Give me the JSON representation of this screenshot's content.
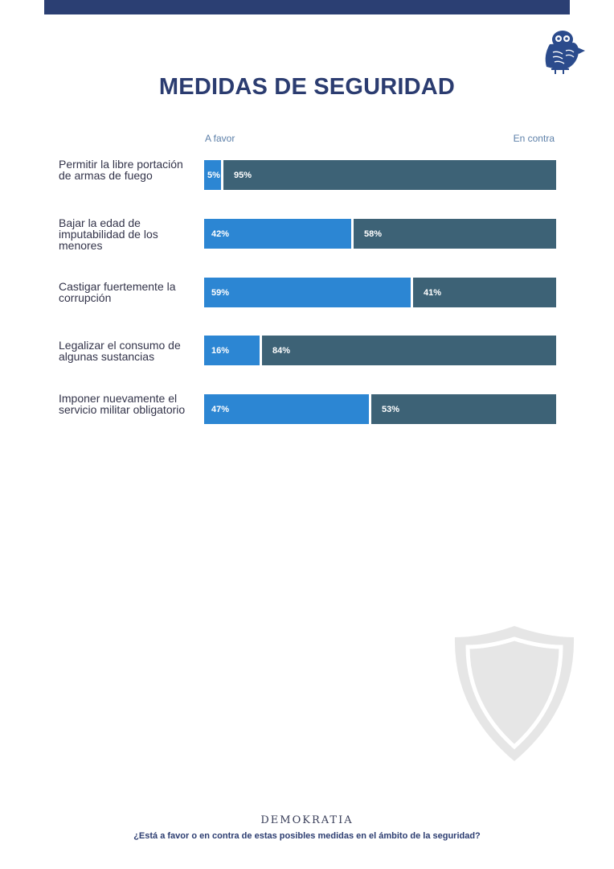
{
  "title": "MEDIDAS DE SEGURIDAD",
  "brand": "DEMOKRATIA",
  "question": "¿Está a favor o en contra de estas posibles medidas en el ámbito de la seguridad?",
  "icons": {
    "logo": "owl-icon",
    "background": "shield-icon"
  },
  "colors": {
    "favor": "#2c86d3",
    "contra": "#3d6276",
    "title": "#2b3c70",
    "top_bar": "#2b3f73"
  },
  "chart_data": {
    "type": "bar",
    "orientation": "horizontal",
    "stacked": true,
    "legend": [
      "A favor",
      "En contra"
    ],
    "categories": [
      "Permitir la libre portación de armas de fuego",
      "Bajar la edad de imputabilidad de los menores",
      "Castigar fuertemente la corrupción",
      "Legalizar el consumo de algunas sustancias",
      "Imponer nuevamente el servicio militar obligatorio"
    ],
    "series": [
      {
        "name": "A favor",
        "values": [
          5,
          42,
          59,
          16,
          47
        ],
        "labels": [
          "5%",
          "42%",
          "59%",
          "16%",
          "47%"
        ]
      },
      {
        "name": "En contra",
        "values": [
          95,
          58,
          41,
          84,
          53
        ],
        "labels": [
          "95%",
          "58%",
          "41%",
          "84%",
          "53%"
        ]
      }
    ],
    "xlim": [
      0,
      100
    ]
  }
}
